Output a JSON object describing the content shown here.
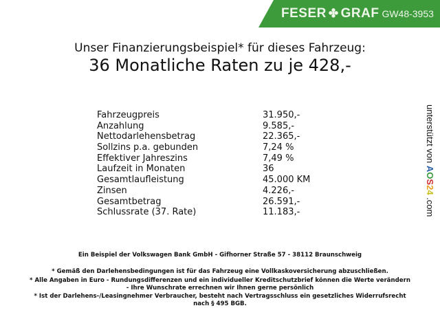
{
  "header": {
    "brand_left": "FESER",
    "brand_right": "GRAF",
    "code": "GW48-3953",
    "brand_color": "#3d9b3b"
  },
  "title": {
    "line1": "Unser Finanzierungsbeispiel* für dieses Fahrzeug:",
    "line2": "36 Monatliche Raten zu je 428,-"
  },
  "rows": [
    {
      "label": "Fahrzeugpreis",
      "value": "31.950,-"
    },
    {
      "label": "Anzahlung",
      "value": "9.585,-"
    },
    {
      "label": "Nettodarlehensbetrag",
      "value": "22.365,-"
    },
    {
      "label": "Sollzins p.a. gebunden",
      "value": "7,24 %"
    },
    {
      "label": "Effektiver Jahreszins",
      "value": "7,49 %"
    },
    {
      "label": "Laufzeit in Monaten",
      "value": "36"
    },
    {
      "label": "Gesamtlaufleistung",
      "value": "45.000 KM"
    },
    {
      "label": "Zinsen",
      "value": "4.226,-"
    },
    {
      "label": "Gesamtbetrag",
      "value": "26.591,-"
    },
    {
      "label": "Schlussrate (37. Rate)",
      "value": "11.183,-"
    }
  ],
  "side": {
    "text": "unterstützt von",
    "logo": "AOS24",
    "suffix": ".com"
  },
  "footer": {
    "bank": "Ein Beispiel der Volkswagen Bank GmbH - Gifhorner Straße 57 - 38112 Braunschweig",
    "note1": "* Gemäß den Darlehensbedingungen ist für das Fahrzeug eine Vollkaskoversicherung abzuschließen.",
    "note2a": "* Alle Angaben in Euro - Rundungsdifferenzen und ein individueller Kreditschutzbrief können die Werte verändern",
    "note2b": "- Ihre Wunschrate errechnen wir Ihnen gerne persönlich",
    "note3a": "* Ist der Darlehens-/Leasingnehmer Verbraucher, besteht nach Vertragsschluss ein gesetzliches Widerrufsrecht",
    "note3b": "nach § 495 BGB."
  }
}
